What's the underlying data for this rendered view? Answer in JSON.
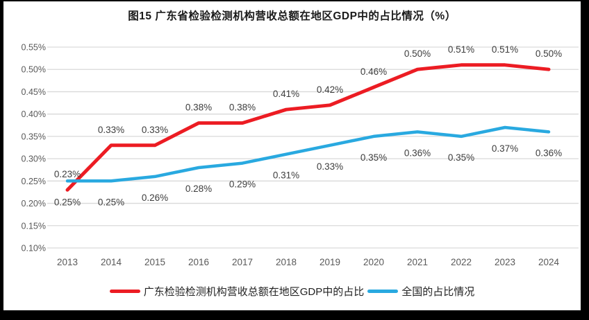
{
  "figure": {
    "title": "图15  广东省检验检测机构营收总额在地区GDP中的占比情况（%）"
  },
  "chart_data": {
    "type": "line",
    "title": "图15  广东省检验检测机构营收总额在地区GDP中的占比情况（%）",
    "categories": [
      "2013",
      "2014",
      "2015",
      "2016",
      "2017",
      "2018",
      "2019",
      "2020",
      "2021",
      "2022",
      "2023",
      "2024"
    ],
    "series": [
      {
        "name": "广东检验检测机构营收总额在地区GDP中的占比",
        "color": "#ec1c23",
        "values": [
          0.23,
          0.33,
          0.33,
          0.38,
          0.38,
          0.41,
          0.42,
          0.46,
          0.5,
          0.51,
          0.51,
          0.5
        ],
        "point_labels": [
          "0.23%",
          "0.33%",
          "0.33%",
          "0.38%",
          "0.38%",
          "0.41%",
          "0.42%",
          "0.46%",
          "0.50%",
          "0.51%",
          "0.51%",
          "0.50%"
        ],
        "label_position": "above"
      },
      {
        "name": "全国的占比情况",
        "color": "#29a9e0",
        "values": [
          0.25,
          0.25,
          0.26,
          0.28,
          0.29,
          0.31,
          0.33,
          0.35,
          0.36,
          0.35,
          0.37,
          0.36
        ],
        "point_labels": [
          "0.25%",
          "0.25%",
          "0.26%",
          "0.28%",
          "0.29%",
          "0.31%",
          "0.33%",
          "0.35%",
          "0.36%",
          "0.35%",
          "0.37%",
          "0.36%"
        ],
        "label_position": "below"
      }
    ],
    "y_axis": {
      "min": 0.1,
      "max": 0.55,
      "step": 0.05,
      "tick_labels": [
        "0.55%",
        "0.50%",
        "0.45%",
        "0.40%",
        "0.35%",
        "0.30%",
        "0.25%",
        "0.20%",
        "0.15%",
        "0.10%"
      ]
    },
    "x_axis": {
      "tick_labels": [
        "2013",
        "2014",
        "2015",
        "2016",
        "2017",
        "2018",
        "2019",
        "2020",
        "2021",
        "2022",
        "2023",
        "2024"
      ]
    },
    "grid": "horizontal",
    "legend_position": "bottom",
    "ylim": [
      0.1,
      0.55
    ]
  },
  "colors": {
    "background": "#000000",
    "panel": "#ffffff",
    "gridline": "#d9d9d9",
    "axis_text": "#595959",
    "data_label_text": "#3d3d3d",
    "title_text": "#1a1a1a",
    "series_red": "#ec1c23",
    "series_blue": "#29a9e0"
  }
}
